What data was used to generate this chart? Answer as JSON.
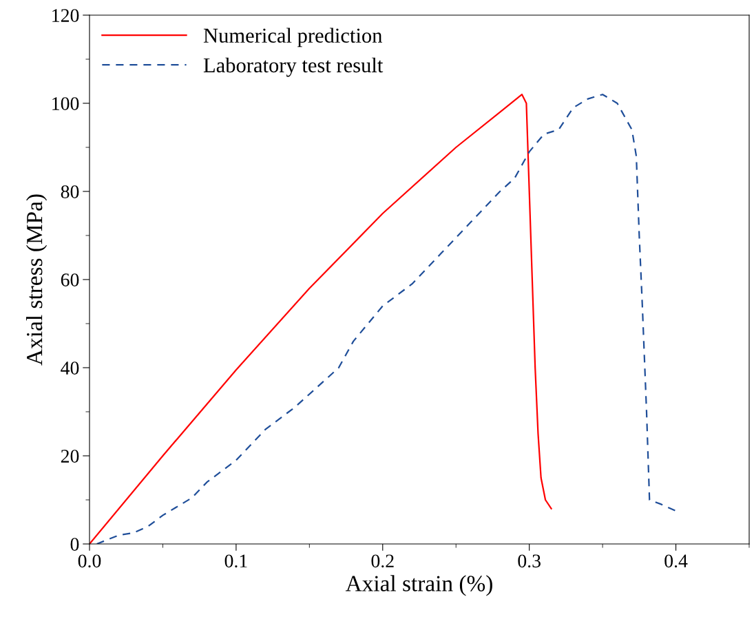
{
  "chart_data": {
    "type": "line",
    "xlabel": "Axial strain (%)",
    "ylabel": "Axial stress (MPa)",
    "xlim": [
      0,
      0.45
    ],
    "xticks": [
      {
        "value": 0,
        "label": "0.0"
      },
      0.1,
      0.2,
      0.3,
      0.4
    ],
    "ylim": [
      0,
      120
    ],
    "yticks": [
      0,
      20,
      40,
      60,
      80,
      100,
      120
    ],
    "grid": false,
    "legend": "top left",
    "series": [
      {
        "name": "Numerical prediction",
        "color": "#ff0000",
        "line_style": "solid",
        "x": [
          0,
          0.05,
          0.1,
          0.15,
          0.2,
          0.25,
          0.28,
          0.295,
          0.298,
          0.3,
          0.302,
          0.304,
          0.306,
          0.308,
          0.311,
          0.315
        ],
        "values": [
          0,
          20,
          39.5,
          58,
          75,
          90,
          98,
          102,
          100,
          80,
          60,
          40,
          25,
          15,
          10,
          8
        ]
      },
      {
        "name": "Laboratory test result",
        "color": "#1f4e99",
        "line_style": "dashed",
        "x": [
          0.005,
          0.02,
          0.03,
          0.04,
          0.05,
          0.06,
          0.07,
          0.08,
          0.1,
          0.12,
          0.14,
          0.16,
          0.17,
          0.18,
          0.2,
          0.22,
          0.24,
          0.26,
          0.28,
          0.29,
          0.3,
          0.31,
          0.32,
          0.33,
          0.34,
          0.35,
          0.36,
          0.37,
          0.373,
          0.375,
          0.377,
          0.38,
          0.382,
          0.39,
          0.4
        ],
        "values": [
          0,
          2,
          2.5,
          4,
          6.5,
          8.5,
          10.5,
          14,
          19,
          26,
          31,
          37,
          40,
          46,
          54,
          59,
          66,
          73,
          80,
          83,
          89,
          93,
          94,
          99,
          101,
          102,
          100,
          94,
          88,
          70,
          55,
          30,
          10,
          9,
          7.5
        ]
      }
    ]
  }
}
